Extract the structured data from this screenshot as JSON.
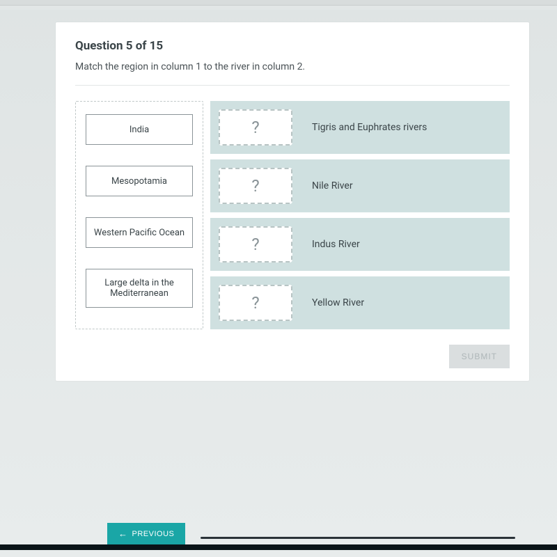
{
  "colors": {
    "page_bg_top": "#dfe4e4",
    "page_bg_bottom": "#e8ecec",
    "card_bg": "#ffffff",
    "text_primary": "#3a4448",
    "text_secondary": "#4a5256",
    "divider": "#e2e6e6",
    "dashed_border": "#c0c8c8",
    "tile_border": "#8b9498",
    "answer_row_bg": "#cfe0e0",
    "drop_border": "#b8c4c4",
    "drop_placeholder": "#8a9498",
    "submit_bg": "#dadedf",
    "submit_text": "#aeb6b8",
    "prev_bg": "#1aa6a6",
    "prev_text": "#ffffff",
    "progress_line": "#2a3238",
    "bottom_bar": "#0a1418"
  },
  "typography": {
    "title_fontsize": 17,
    "title_weight": 700,
    "body_fontsize": 14,
    "tile_fontsize": 13,
    "placeholder_fontsize": 24,
    "button_fontsize": 12
  },
  "question": {
    "title": "Question 5 of 15",
    "instruction": "Match the region in column 1 to the river in column 2."
  },
  "drag_tiles": [
    {
      "label": "India"
    },
    {
      "label": "Mesopotamia"
    },
    {
      "label": "Western Pacific Ocean"
    },
    {
      "label": "Large delta in the Mediterranean"
    }
  ],
  "answer_rows": [
    {
      "placeholder": "?",
      "label": "Tigris and Euphrates rivers"
    },
    {
      "placeholder": "?",
      "label": "Nile River"
    },
    {
      "placeholder": "?",
      "label": "Indus River"
    },
    {
      "placeholder": "?",
      "label": "Yellow River"
    }
  ],
  "buttons": {
    "submit": "SUBMIT",
    "previous": "PREVIOUS"
  }
}
